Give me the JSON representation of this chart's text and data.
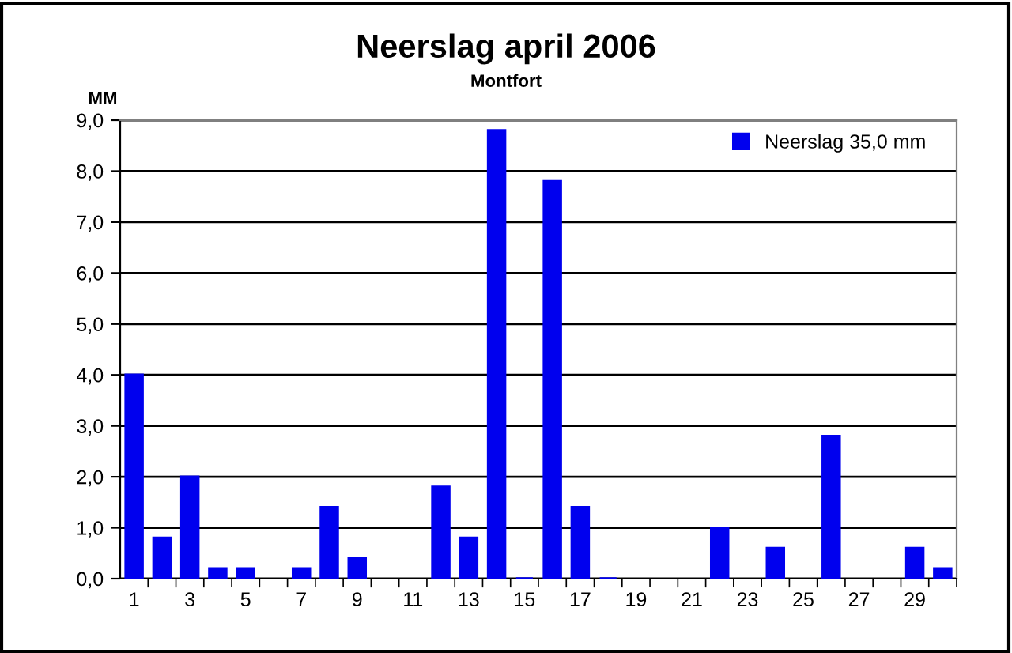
{
  "chart_data": {
    "type": "bar",
    "title": "Neerslag april 2006",
    "subtitle": "Montfort",
    "ylabel": "MM",
    "categories": [
      "1",
      null,
      "3",
      null,
      "5",
      null,
      "7",
      null,
      "9",
      null,
      "11",
      null,
      "13",
      null,
      "15",
      null,
      "17",
      null,
      "19",
      null,
      "21",
      null,
      "23",
      null,
      "25",
      null,
      "27",
      null,
      "29",
      null
    ],
    "series": [
      {
        "name": "Neerslag 35,0 mm",
        "color": "#0000ee",
        "values": [
          4.0,
          0.8,
          2.0,
          0.2,
          0.2,
          null,
          0.2,
          1.4,
          0.4,
          null,
          null,
          1.8,
          0.8,
          8.8,
          0,
          7.8,
          1.4,
          0,
          null,
          null,
          null,
          1.0,
          null,
          0.6,
          null,
          2.8,
          null,
          null,
          0.6,
          0.2
        ]
      }
    ],
    "ylim": [
      0,
      9
    ],
    "yticks": [
      {
        "value": 0,
        "label": "0,0"
      },
      {
        "value": 1,
        "label": "1,0"
      },
      {
        "value": 2,
        "label": "2,0"
      },
      {
        "value": 3,
        "label": "3,0"
      },
      {
        "value": 4,
        "label": "4,0"
      },
      {
        "value": 5,
        "label": "5,0"
      },
      {
        "value": 6,
        "label": "6,0"
      },
      {
        "value": 7,
        "label": "7,0"
      },
      {
        "value": 8,
        "label": "8,0"
      },
      {
        "value": 9,
        "label": "9,0"
      }
    ],
    "grid": "y",
    "legend": "top right"
  }
}
